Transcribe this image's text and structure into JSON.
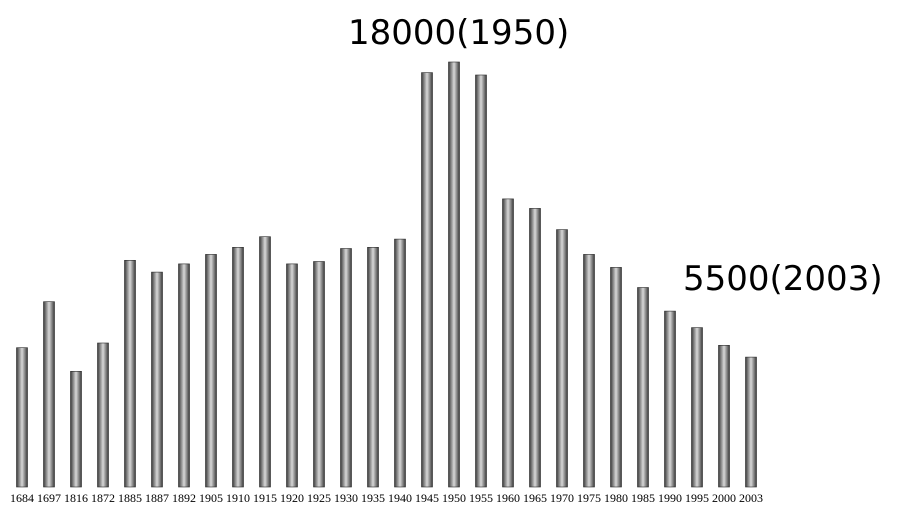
{
  "chart_data": {
    "type": "bar",
    "title": "",
    "xlabel": "",
    "ylabel": "",
    "categories": [
      "1684",
      "1697",
      "1816",
      "1872",
      "1885",
      "1887",
      "1892",
      "1905",
      "1910",
      "1915",
      "1920",
      "1925",
      "1930",
      "1935",
      "1940",
      "1945",
      "1950",
      "1955",
      "1960",
      "1965",
      "1970",
      "1975",
      "1980",
      "1985",
      "1990",
      "1995",
      "2000",
      "2003"
    ],
    "values": [
      5900,
      7850,
      4900,
      6100,
      9600,
      9100,
      9450,
      9850,
      10150,
      10600,
      9450,
      9550,
      10100,
      10150,
      10500,
      17550,
      18000,
      17450,
      12200,
      11800,
      10900,
      9850,
      9300,
      8450,
      7450,
      6750,
      6000,
      5500
    ],
    "ylim": [
      0,
      18000
    ],
    "grid": false,
    "legend": "none",
    "bar_color": "#9a9a9a",
    "annotations": [
      {
        "text": "18000(1950)",
        "category": "1950"
      },
      {
        "text": "5500(2003)",
        "category": "2003"
      }
    ]
  }
}
